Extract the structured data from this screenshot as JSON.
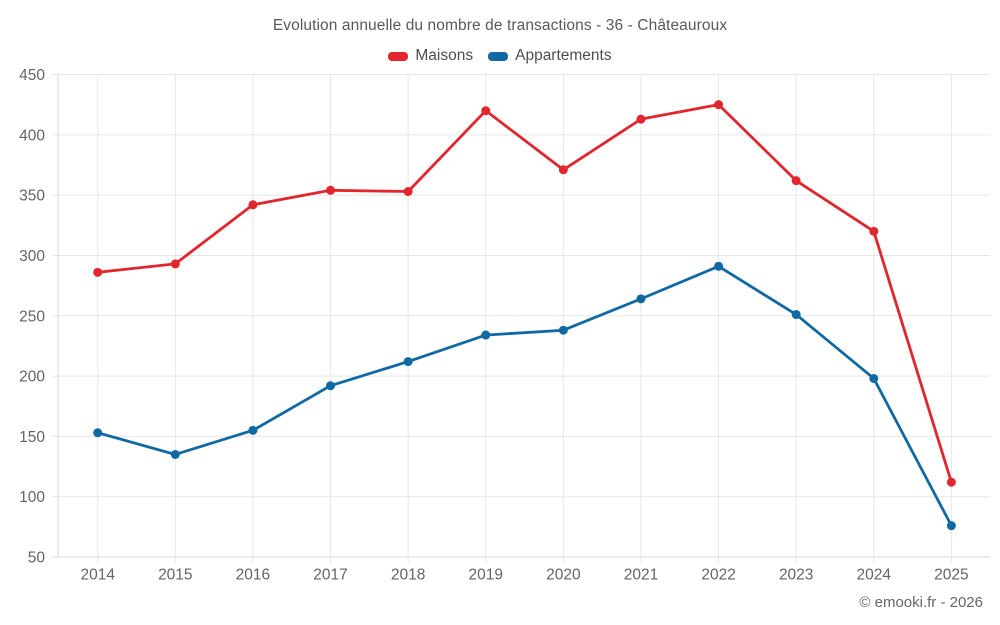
{
  "chart_data": {
    "type": "line",
    "title": "Evolution annuelle du nombre de transactions - 36 - Châteauroux",
    "categories": [
      "2014",
      "2015",
      "2016",
      "2017",
      "2018",
      "2019",
      "2020",
      "2021",
      "2022",
      "2023",
      "2024",
      "2025"
    ],
    "series": [
      {
        "name": "Maisons",
        "color": "#e1262d",
        "values": [
          286,
          293,
          342,
          354,
          353,
          420,
          371,
          413,
          425,
          362,
          320,
          112
        ]
      },
      {
        "name": "Appartements",
        "color": "#1169a4",
        "values": [
          153,
          135,
          155,
          192,
          212,
          234,
          238,
          264,
          291,
          251,
          198,
          76
        ]
      }
    ],
    "xlabel": "",
    "ylabel": "",
    "ylim": [
      50,
      450
    ],
    "ytick_step": 50,
    "grid": true,
    "legend_position": "top",
    "colors": {
      "grid": "#e7e7e7",
      "axis": "#d8d8d8",
      "tick_text": "#646464",
      "title_text": "#595959",
      "legend_text": "#4e4e4e",
      "background": "#ffffff"
    }
  },
  "footer": {
    "copyright": "© emooki.fr - 2026"
  }
}
